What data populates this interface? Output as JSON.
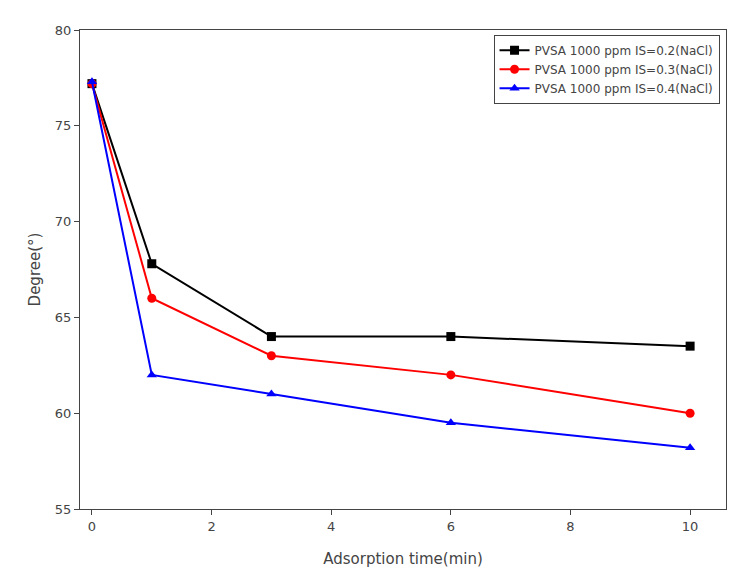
{
  "chart_data": {
    "type": "line",
    "xlabel": "Adsorption time(min)",
    "ylabel": "Degree(°)",
    "x": [
      0,
      1,
      3,
      6,
      10
    ],
    "series": [
      {
        "name": "PVSA 1000 ppm IS=0.2(NaCl)",
        "color": "black",
        "marker": "square",
        "line_style": "solid",
        "values": [
          77.2,
          67.8,
          64.0,
          64.0,
          63.5
        ]
      },
      {
        "name": "PVSA 1000 ppm IS=0.3(NaCl)",
        "color": "red",
        "marker": "circle",
        "line_style": "solid",
        "values": [
          77.2,
          66.0,
          63.0,
          62.0,
          60.0
        ]
      },
      {
        "name": "PVSA 1000 ppm IS=0.4(NaCl)",
        "color": "blue",
        "marker": "triangle",
        "line_style": "solid",
        "values": [
          77.3,
          62.0,
          61.0,
          59.5,
          58.2
        ]
      }
    ],
    "xlim": [
      -0.2,
      10.6
    ],
    "ylim": [
      55,
      80
    ],
    "xticks": [
      0,
      2,
      4,
      6,
      8,
      10
    ],
    "yticks": [
      55,
      60,
      65,
      70,
      75,
      80
    ],
    "grid": false,
    "legend": "upper right"
  }
}
